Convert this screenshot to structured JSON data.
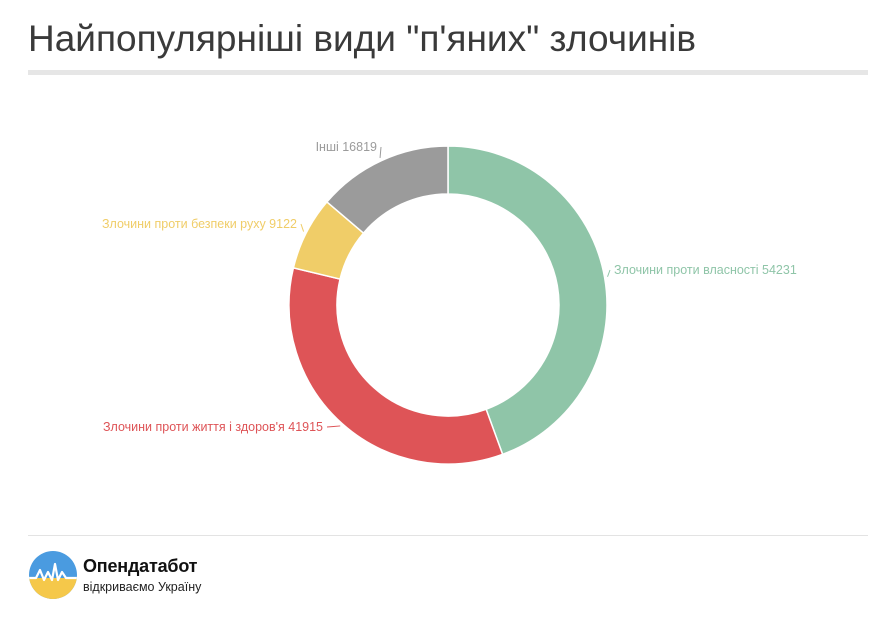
{
  "header": {
    "title": "Найпопулярніші види \"п'яних\" злочинів"
  },
  "chart_data": {
    "type": "pie",
    "variant": "donut",
    "legend": "none",
    "categories": [
      "Злочини проти власності",
      "Злочини проти життя і здоров'я",
      "Злочини проти безпеки руху",
      "Інші"
    ],
    "values": [
      54231,
      41915,
      9122,
      16819
    ],
    "labels": [
      "Злочини проти власності 54231",
      "Злочини проти життя і здоров'я 41915",
      "Злочини проти безпеки руху 9122",
      "Інші 16819"
    ],
    "colors": [
      "#8fc5a8",
      "#de5457",
      "#f0cd68",
      "#9b9b9b"
    ]
  },
  "footer": {
    "brand_name": "Опендатабот",
    "brand_tagline": "відкриваємо Україну",
    "logo_colors": {
      "sky": "#4a9be0",
      "sun": "#f5c84a",
      "line": "#ffffff"
    }
  }
}
